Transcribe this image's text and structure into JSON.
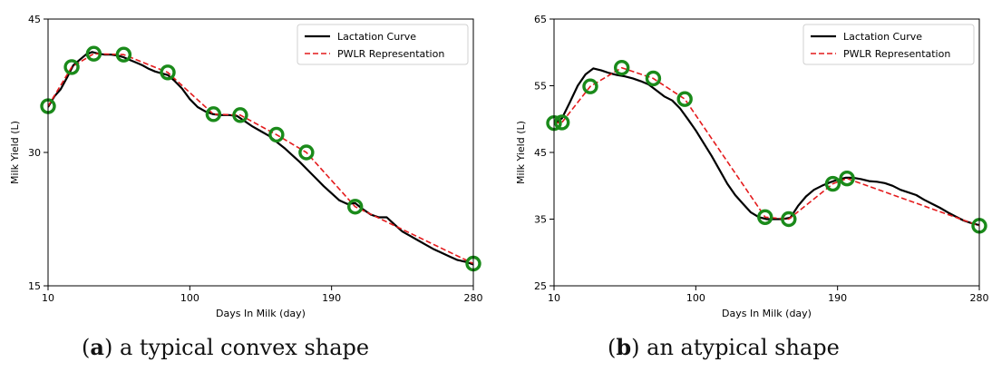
{
  "chart_data": [
    {
      "type": "line",
      "xlabel": "Days In Milk (day)",
      "ylabel": "Milk Yield (L)",
      "xlim": [
        10,
        280
      ],
      "ylim": [
        15,
        45
      ],
      "xticks": [
        10,
        100,
        190,
        280
      ],
      "yticks": [
        15,
        30,
        45
      ],
      "grid": false,
      "legend_position": "top-right",
      "series": [
        {
          "name": "Lactation Curve",
          "color": "#000000",
          "style": "solid",
          "x": [
            10,
            14,
            18,
            22,
            26,
            30,
            34,
            38,
            42,
            46,
            50,
            54,
            58,
            62,
            66,
            70,
            74,
            78,
            82,
            86,
            90,
            95,
            100,
            105,
            110,
            115,
            120,
            125,
            130,
            135,
            140,
            145,
            150,
            155,
            160,
            165,
            170,
            175,
            180,
            185,
            190,
            195,
            200,
            205,
            210,
            215,
            220,
            225,
            230,
            235,
            240,
            245,
            250,
            255,
            260,
            265,
            270,
            275,
            280
          ],
          "y": [
            35.1,
            36.3,
            37.1,
            38.4,
            39.8,
            40.4,
            41.0,
            41.3,
            41.1,
            41.0,
            41.0,
            40.9,
            40.7,
            40.4,
            40.1,
            39.8,
            39.4,
            39.1,
            38.9,
            38.7,
            38.1,
            37.2,
            36.0,
            35.1,
            34.6,
            34.3,
            34.2,
            34.2,
            34.1,
            33.5,
            32.9,
            32.4,
            31.9,
            31.2,
            30.5,
            29.7,
            28.9,
            28.0,
            27.1,
            26.2,
            25.4,
            24.6,
            24.2,
            24.3,
            23.6,
            23.0,
            22.7,
            22.7,
            21.9,
            21.1,
            20.6,
            20.1,
            19.6,
            19.1,
            18.7,
            18.3,
            17.9,
            17.7,
            17.4
          ]
        },
        {
          "name": "PWLR Representation",
          "color": "#e41a1c",
          "style": "dashed",
          "x": [
            10,
            25,
            39,
            58,
            86,
            115,
            132,
            155,
            174,
            205,
            280
          ],
          "y": [
            35.2,
            39.6,
            41.1,
            41.0,
            39.0,
            34.3,
            34.2,
            32.0,
            30.0,
            23.9,
            17.5
          ]
        }
      ],
      "markers": {
        "color": "#1a8a1a",
        "x": [
          10,
          25,
          39,
          58,
          86,
          115,
          132,
          155,
          174,
          205,
          280
        ],
        "y": [
          35.2,
          39.6,
          41.1,
          41.0,
          39.0,
          34.3,
          34.2,
          32.0,
          30.0,
          23.9,
          17.5
        ]
      }
    },
    {
      "type": "line",
      "xlabel": "Days In Milk (day)",
      "ylabel": "Milk Yield (L)",
      "xlim": [
        10,
        280
      ],
      "ylim": [
        25,
        65
      ],
      "xticks": [
        10,
        100,
        190,
        280
      ],
      "yticks": [
        25,
        35,
        45,
        55,
        65
      ],
      "grid": false,
      "legend_position": "top-right",
      "series": [
        {
          "name": "Lactation Curve",
          "color": "#000000",
          "style": "solid",
          "x": [
            10,
            15,
            20,
            25,
            30,
            35,
            40,
            45,
            50,
            55,
            60,
            65,
            70,
            75,
            80,
            85,
            90,
            95,
            100,
            105,
            110,
            115,
            120,
            125,
            130,
            135,
            140,
            145,
            150,
            155,
            160,
            165,
            170,
            175,
            180,
            185,
            190,
            195,
            200,
            205,
            210,
            215,
            220,
            225,
            230,
            235,
            240,
            245,
            250,
            255,
            260,
            265,
            270,
            275,
            280
          ],
          "y": [
            49.3,
            50.1,
            52.5,
            55.0,
            56.7,
            57.6,
            57.3,
            56.9,
            56.6,
            56.4,
            56.1,
            55.7,
            55.2,
            54.3,
            53.4,
            52.8,
            51.6,
            50.0,
            48.3,
            46.4,
            44.5,
            42.4,
            40.3,
            38.6,
            37.3,
            36.0,
            35.3,
            35.0,
            35.0,
            35.0,
            35.2,
            37.0,
            38.4,
            39.4,
            40.0,
            40.5,
            40.9,
            41.2,
            41.2,
            41.0,
            40.7,
            40.6,
            40.4,
            40.0,
            39.4,
            39.0,
            38.6,
            37.9,
            37.3,
            36.7,
            36.0,
            35.4,
            34.8,
            34.4,
            34.1
          ]
        },
        {
          "name": "PWLR Representation",
          "color": "#e41a1c",
          "style": "dashed",
          "x": [
            10,
            15,
            33,
            53,
            73,
            93,
            144,
            159,
            187,
            196,
            280
          ],
          "y": [
            49.4,
            49.5,
            54.9,
            57.7,
            56.1,
            53.0,
            35.3,
            35.0,
            40.3,
            41.1,
            34.0
          ]
        }
      ],
      "markers": {
        "color": "#1a8a1a",
        "x": [
          10,
          15,
          33,
          53,
          73,
          93,
          144,
          159,
          187,
          196,
          280
        ],
        "y": [
          49.4,
          49.5,
          54.9,
          57.7,
          56.1,
          53.0,
          35.3,
          35.0,
          40.3,
          41.1,
          34.0
        ]
      }
    }
  ],
  "captions": [
    {
      "letter": "a",
      "text": " a typical convex shape"
    },
    {
      "letter": "b",
      "text": " an atypical shape"
    }
  ]
}
